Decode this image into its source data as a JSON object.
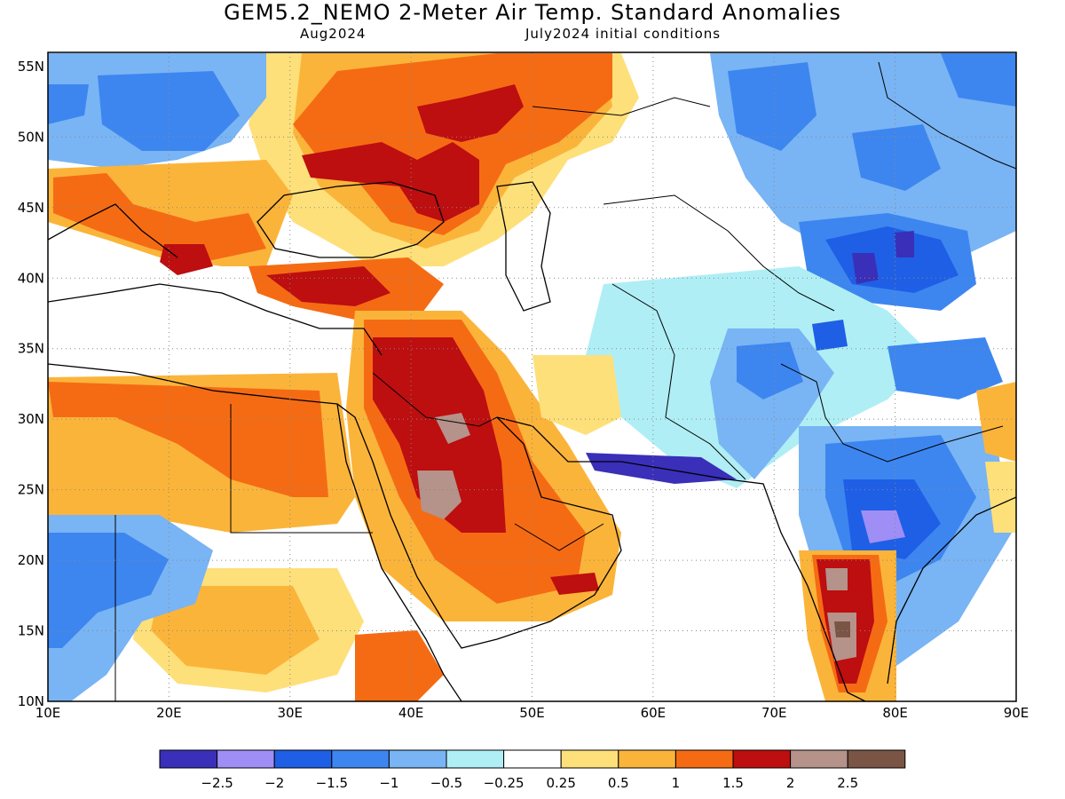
{
  "header": {
    "title": "GEM5.2_NEMO 2-Meter Air Temp. Standard Anomalies",
    "valid_month": "Aug2024",
    "init": "July2024 initial conditions"
  },
  "map": {
    "lat_labels": [
      "55N",
      "50N",
      "45N",
      "40N",
      "35N",
      "30N",
      "25N",
      "20N",
      "15N",
      "10N"
    ],
    "lon_labels": [
      "10E",
      "20E",
      "30E",
      "40E",
      "50E",
      "60E",
      "70E",
      "80E",
      "90E"
    ],
    "lon_range": [
      10,
      90
    ],
    "lat_range": [
      10,
      56
    ]
  },
  "colorbar": {
    "colors": [
      "#3a2fb8",
      "#9f8ef5",
      "#1e5fe6",
      "#3d86f0",
      "#79b4f4",
      "#b0eef6",
      "#ffffff",
      "#fde07a",
      "#fbb43a",
      "#f56b14",
      "#bd0e10",
      "#b5928a",
      "#7a5546"
    ],
    "labels": [
      "−2.5",
      "−2",
      "−1.5",
      "−1",
      "−0.5",
      "−0.25",
      "0.25",
      "0.5",
      "1",
      "1.5",
      "2",
      "2.5"
    ]
  }
}
